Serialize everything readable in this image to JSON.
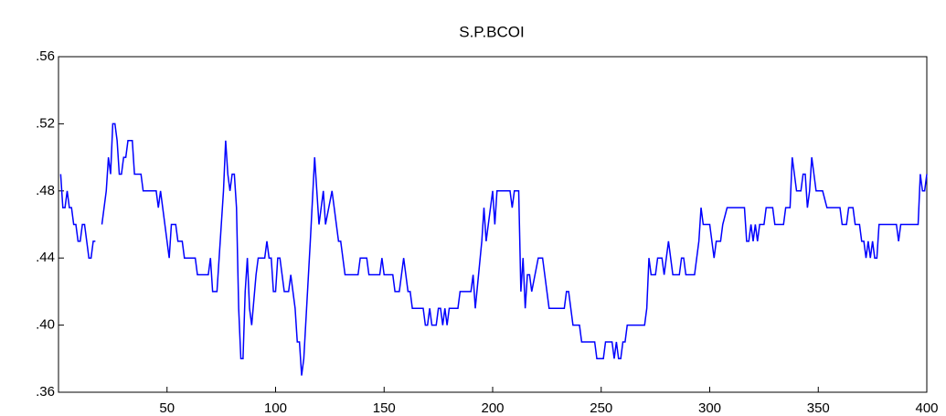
{
  "chart_data": {
    "type": "line",
    "title": "S.P.BCOI",
    "x": [
      1,
      2,
      3,
      4,
      5,
      6,
      7,
      8,
      9,
      10,
      11,
      12,
      13,
      14,
      15,
      16,
      17,
      19,
      20,
      21,
      22,
      23,
      24,
      25,
      26,
      27,
      28,
      29,
      30,
      31,
      32,
      34,
      35,
      38,
      39,
      45,
      46,
      47,
      49,
      51,
      52,
      54,
      55,
      57,
      58,
      63,
      64,
      69,
      70,
      71,
      73,
      74,
      76,
      77,
      78,
      79,
      80,
      81,
      82,
      83,
      84,
      85,
      86,
      87,
      88,
      89,
      91,
      92,
      95,
      96,
      97,
      98,
      99,
      100,
      101,
      102,
      103,
      104,
      106,
      107,
      108,
      109,
      110,
      111,
      112,
      113,
      116,
      118,
      119,
      120,
      122,
      123,
      126,
      127,
      128,
      129,
      130,
      132,
      138,
      139,
      142,
      143,
      148,
      149,
      150,
      154,
      155,
      157,
      158,
      159,
      161,
      162,
      163,
      168,
      169,
      170,
      171,
      172,
      174,
      175,
      176,
      177,
      178,
      179,
      180,
      184,
      185,
      190,
      191,
      192,
      195,
      196,
      197,
      200,
      201,
      202,
      208,
      209,
      210,
      212,
      213,
      214,
      215,
      216,
      217,
      218,
      221,
      223,
      224,
      226,
      233,
      234,
      235,
      237,
      240,
      241,
      247,
      248,
      251,
      252,
      255,
      256,
      257,
      258,
      259,
      260,
      261,
      262,
      270,
      271,
      272,
      273,
      275,
      276,
      278,
      279,
      281,
      283,
      286,
      287,
      288,
      289,
      293,
      295,
      296,
      297,
      300,
      302,
      303,
      305,
      306,
      308,
      316,
      317,
      318,
      319,
      320,
      321,
      322,
      323,
      325,
      326,
      329,
      330,
      334,
      335,
      337,
      338,
      340,
      342,
      343,
      344,
      345,
      346,
      347,
      349,
      352,
      354,
      360,
      361,
      363,
      364,
      366,
      367,
      369,
      370,
      371,
      372,
      373,
      374,
      375,
      376,
      377,
      378,
      386,
      387,
      388,
      396,
      397,
      398,
      399,
      400
    ],
    "series": [
      {
        "name": "S.P.BCOI",
        "color": "#0000ff",
        "values": [
          0.49,
          0.47,
          0.47,
          0.48,
          0.47,
          0.47,
          0.46,
          0.46,
          0.45,
          0.45,
          0.46,
          0.46,
          0.45,
          0.44,
          0.44,
          0.45,
          0.45,
          null,
          0.46,
          0.47,
          0.48,
          0.5,
          0.49,
          0.52,
          0.52,
          0.51,
          0.49,
          0.49,
          0.5,
          0.5,
          0.51,
          0.51,
          0.49,
          0.49,
          0.48,
          0.48,
          0.47,
          0.48,
          0.46,
          0.44,
          0.46,
          0.46,
          0.45,
          0.45,
          0.44,
          0.44,
          0.43,
          0.43,
          0.44,
          0.42,
          0.42,
          0.44,
          0.48,
          0.51,
          0.49,
          0.48,
          0.49,
          0.49,
          0.47,
          0.41,
          0.38,
          0.38,
          0.42,
          0.44,
          0.41,
          0.4,
          0.43,
          0.44,
          0.44,
          0.45,
          0.44,
          0.44,
          0.42,
          0.42,
          0.44,
          0.44,
          0.43,
          0.42,
          0.42,
          0.43,
          0.42,
          0.41,
          0.39,
          0.39,
          0.37,
          0.38,
          0.45,
          0.5,
          0.48,
          0.46,
          0.48,
          0.46,
          0.48,
          0.47,
          0.46,
          0.45,
          0.45,
          0.43,
          0.43,
          0.44,
          0.44,
          0.43,
          0.43,
          0.44,
          0.43,
          0.43,
          0.42,
          0.42,
          0.43,
          0.44,
          0.42,
          0.42,
          0.41,
          0.41,
          0.4,
          0.4,
          0.41,
          0.4,
          0.4,
          0.41,
          0.41,
          0.4,
          0.41,
          0.4,
          0.41,
          0.41,
          0.42,
          0.42,
          0.43,
          0.41,
          0.45,
          0.47,
          0.45,
          0.48,
          0.46,
          0.48,
          0.48,
          0.47,
          0.48,
          0.48,
          0.42,
          0.44,
          0.41,
          0.43,
          0.43,
          0.42,
          0.44,
          0.44,
          0.43,
          0.41,
          0.41,
          0.42,
          0.42,
          0.4,
          0.4,
          0.39,
          0.39,
          0.38,
          0.38,
          0.39,
          0.39,
          0.38,
          0.39,
          0.38,
          0.38,
          0.39,
          0.39,
          0.4,
          0.4,
          0.41,
          0.44,
          0.43,
          0.43,
          0.44,
          0.44,
          0.43,
          0.45,
          0.43,
          0.43,
          0.44,
          0.44,
          0.43,
          0.43,
          0.45,
          0.47,
          0.46,
          0.46,
          0.44,
          0.45,
          0.45,
          0.46,
          0.47,
          0.47,
          0.45,
          0.45,
          0.46,
          0.45,
          0.46,
          0.45,
          0.46,
          0.46,
          0.47,
          0.47,
          0.46,
          0.46,
          0.47,
          0.47,
          0.5,
          0.48,
          0.48,
          0.49,
          0.49,
          0.47,
          0.48,
          0.5,
          0.48,
          0.48,
          0.47,
          0.47,
          0.46,
          0.46,
          0.47,
          0.47,
          0.46,
          0.46,
          0.45,
          0.45,
          0.44,
          0.45,
          0.44,
          0.45,
          0.44,
          0.44,
          0.46,
          0.46,
          0.45,
          0.46,
          0.46,
          0.49,
          0.48,
          0.48,
          0.49
        ]
      }
    ],
    "xlim": [
      0,
      400
    ],
    "xticks": [
      50,
      100,
      150,
      200,
      250,
      300,
      350,
      400
    ],
    "ylim": [
      0.36,
      0.56
    ],
    "yticks": [
      {
        "value": 0.36,
        "label": ".36"
      },
      {
        "value": 0.4,
        "label": ".40"
      },
      {
        "value": 0.44,
        "label": ".44"
      },
      {
        "value": 0.48,
        "label": ".48"
      },
      {
        "value": 0.52,
        "label": ".52"
      },
      {
        "value": 0.56,
        "label": ".56"
      }
    ],
    "grid": false
  }
}
